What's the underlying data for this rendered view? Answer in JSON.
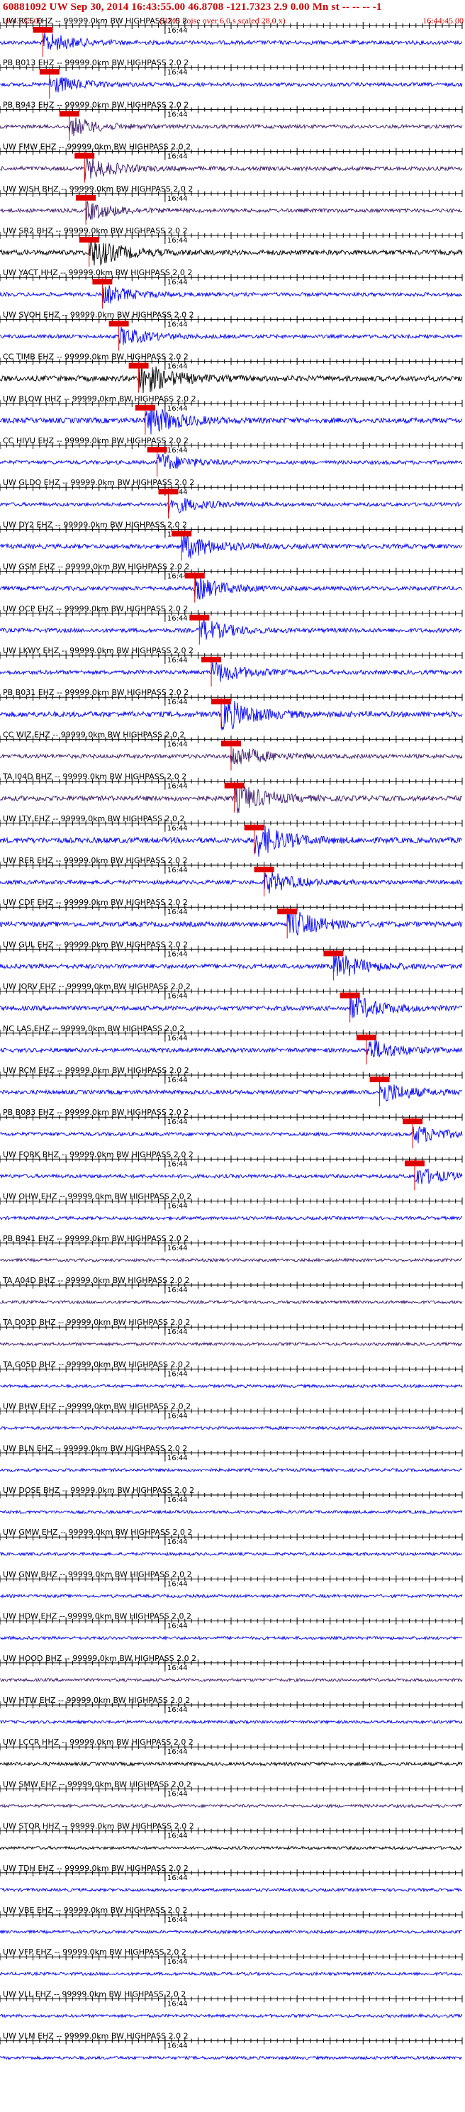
{
  "header": {
    "event_line": "60881092 UW Sep 30, 2014 16:43:55.00   46.8708 -121.7323  2.9 0.00 Mn st -- -- --  -1",
    "start_time": "16:43:35.00",
    "rms_note": "(RMS noise over 6.0 s scaled 28.0 x)",
    "end_time": "16:44:45.00"
  },
  "chart_data": {
    "type": "line",
    "x_range_seconds": [
      0,
      70
    ],
    "start_time": "16:43:35.00",
    "end_time": "16:44:45.00",
    "minute_tick_label": "16:44",
    "minute_tick_seconds": 25,
    "colors": {
      "blue": "#0000ff",
      "black": "#000000",
      "purple": "#3a1a6a",
      "pick": "#e00000"
    },
    "traces": [
      {
        "label": "UW RCS EHZ -- 99999.0km BW HIGHPASS 2.0 2",
        "color": "blue",
        "pick_s": 6.5,
        "amp": 0.55
      },
      {
        "label": "PB B013 EHZ -- 99999.0km BW HIGHPASS 2.0 2",
        "color": "blue",
        "pick_s": 7.5,
        "amp": 0.5
      },
      {
        "label": "PB B943 EHZ -- 99999.0km BW HIGHPASS 2.0 2",
        "color": "purple",
        "pick_s": 10.5,
        "amp": 0.5
      },
      {
        "label": "UW FMW EHZ -- 99999.0km BW HIGHPASS 2.0 2",
        "color": "purple",
        "pick_s": 12.8,
        "amp": 0.6
      },
      {
        "label": "UW WISH BHZ -- 99999.0km BW HIGHPASS 2.0 2",
        "color": "purple",
        "pick_s": 13.0,
        "amp": 0.5
      },
      {
        "label": "UW SR2 BHZ -- 99999.0km BW HIGHPASS 2.0 2",
        "color": "black",
        "pick_s": 13.5,
        "amp": 0.8
      },
      {
        "label": "UW YACT HHZ -- 99999.0km BW HIGHPASS 2.0 2",
        "color": "blue",
        "pick_s": 15.5,
        "amp": 0.5
      },
      {
        "label": "UW SVOH EHZ -- 99999.0km BW HIGHPASS 2.0 2",
        "color": "blue",
        "pick_s": 18.0,
        "amp": 0.5
      },
      {
        "label": "CC TIMB EHZ -- 99999.0km BW HIGHPASS 2.0 2",
        "color": "black",
        "pick_s": 21.0,
        "amp": 0.9
      },
      {
        "label": "UW BLOW HHZ -- 99999.0km BW HIGHPASS 2.0 2",
        "color": "blue",
        "pick_s": 22.0,
        "amp": 0.85
      },
      {
        "label": "CC HIVU EHZ -- 99999.0km BW HIGHPASS 2.0 2",
        "color": "blue",
        "pick_s": 23.8,
        "amp": 0.5
      },
      {
        "label": "UW GLDO EHZ -- 99999.0km BW HIGHPASS 2.0 2",
        "color": "blue",
        "pick_s": 25.5,
        "amp": 0.5
      },
      {
        "label": "UW DY2 EHZ -- 99999.0km BW HIGHPASS 2.0 2",
        "color": "blue",
        "pick_s": 27.5,
        "amp": 0.7
      },
      {
        "label": "UW GSM EHZ -- 99999.0km BW HIGHPASS 2.0 2",
        "color": "blue",
        "pick_s": 29.5,
        "amp": 0.6
      },
      {
        "label": "UW OCP EHZ -- 99999.0km BW HIGHPASS 2.0 2",
        "color": "blue",
        "pick_s": 30.2,
        "amp": 0.6
      },
      {
        "label": "UW LKWY EHZ -- 99999.0km BW HIGHPASS 2.0 2",
        "color": "blue",
        "pick_s": 32.0,
        "amp": 0.6
      },
      {
        "label": "PB B031 EHZ -- 99999.0km BW HIGHPASS 2.0 2",
        "color": "blue",
        "pick_s": 33.5,
        "amp": 0.9
      },
      {
        "label": "CC WIZ EHZ -- 99999.0km BW HIGHPASS 2.0 2",
        "color": "purple",
        "pick_s": 35.0,
        "amp": 0.6
      },
      {
        "label": "TA I04D BHZ -- 99999.0km BW HIGHPASS 2.0 2",
        "color": "purple",
        "pick_s": 35.5,
        "amp": 0.8
      },
      {
        "label": "UW LTY EHZ -- 99999.0km BW HIGHPASS 2.0 2",
        "color": "blue",
        "pick_s": 38.5,
        "amp": 0.9
      },
      {
        "label": "UW RER EHZ -- 99999.0km BW HIGHPASS 2.0 2",
        "color": "blue",
        "pick_s": 40.0,
        "amp": 0.6
      },
      {
        "label": "UW CDF EHZ -- 99999.0km BW HIGHPASS 2.0 2",
        "color": "blue",
        "pick_s": 43.5,
        "amp": 0.8
      },
      {
        "label": "UW GUL EHZ -- 99999.0km BW HIGHPASS 2.0 2",
        "color": "blue",
        "pick_s": 50.5,
        "amp": 0.7
      },
      {
        "label": "UW JORV EHZ -- 99999.0km BW HIGHPASS 2.0 2",
        "color": "blue",
        "pick_s": 53.0,
        "amp": 0.7
      },
      {
        "label": "NC LAS EHZ -- 99999.0km BW HIGHPASS 2.0 2",
        "color": "blue",
        "pick_s": 55.5,
        "amp": 0.6
      },
      {
        "label": "UW RCM EHZ -- 99999.0km BW HIGHPASS 2.0 2",
        "color": "blue",
        "pick_s": 57.5,
        "amp": 0.6
      },
      {
        "label": "PB B083 EHZ -- 99999.0km BW HIGHPASS 2.0 2",
        "color": "blue",
        "pick_s": 62.5,
        "amp": 0.5
      },
      {
        "label": "UW FORK BHZ -- 99999.0km BW HIGHPASS 2.0 2",
        "color": "blue",
        "pick_s": 62.8,
        "amp": 0.5
      },
      {
        "label": "UW OHW EHZ -- 99999.0km BW HIGHPASS 2.0 2",
        "color": "blue",
        "pick_s": null,
        "amp": 0.4
      },
      {
        "label": "PB B941 EHZ -- 99999.0km BW HIGHPASS 2.0 2",
        "color": "purple",
        "pick_s": null,
        "amp": 0.35
      },
      {
        "label": "TA A04D BHZ -- 99999.0km BW HIGHPASS 2.0 2",
        "color": "purple",
        "pick_s": null,
        "amp": 0.35
      },
      {
        "label": "TA D03D BHZ -- 99999.0km BW HIGHPASS 2.0 2",
        "color": "purple",
        "pick_s": null,
        "amp": 0.35
      },
      {
        "label": "TA G05D BHZ -- 99999.0km BW HIGHPASS 2.0 2",
        "color": "blue",
        "pick_s": null,
        "amp": 0.35
      },
      {
        "label": "UW BHW EHZ -- 99999.0km BW HIGHPASS 2.0 2",
        "color": "blue",
        "pick_s": null,
        "amp": 0.35
      },
      {
        "label": "UW BLN EHZ -- 99999.0km BW HIGHPASS 2.0 2",
        "color": "blue",
        "pick_s": null,
        "amp": 0.35
      },
      {
        "label": "UW DOSE BHZ -- 99999.0km BW HIGHPASS 2.0 2",
        "color": "blue",
        "pick_s": null,
        "amp": 0.35
      },
      {
        "label": "UW GMW EHZ -- 99999.0km BW HIGHPASS 2.0 2",
        "color": "blue",
        "pick_s": null,
        "amp": 0.35
      },
      {
        "label": "UW GNW BHZ -- 99999.0km BW HIGHPASS 2.0 2",
        "color": "blue",
        "pick_s": null,
        "amp": 0.35
      },
      {
        "label": "UW HDW EHZ -- 99999.0km BW HIGHPASS 2.0 2",
        "color": "blue",
        "pick_s": null,
        "amp": 0.35
      },
      {
        "label": "UW HOOD BHZ -- 99999.0km BW HIGHPASS 2.0 2",
        "color": "purple",
        "pick_s": null,
        "amp": 0.35
      },
      {
        "label": "UW HTW EHZ -- 99999.0km BW HIGHPASS 2.0 2",
        "color": "blue",
        "pick_s": null,
        "amp": 0.35
      },
      {
        "label": "UW LCCR HHZ -- 99999.0km BW HIGHPASS 2.0 2",
        "color": "black",
        "pick_s": null,
        "amp": 0.45
      },
      {
        "label": "UW SMW EHZ -- 99999.0km BW HIGHPASS 2.0 2",
        "color": "purple",
        "pick_s": null,
        "amp": 0.35
      },
      {
        "label": "UW STOR HHZ -- 99999.0km BW HIGHPASS 2.0 2",
        "color": "black",
        "pick_s": null,
        "amp": 0.35
      },
      {
        "label": "UW TDH EHZ -- 99999.0km BW HIGHPASS 2.0 2",
        "color": "blue",
        "pick_s": null,
        "amp": 0.35
      },
      {
        "label": "UW VBE EHZ -- 99999.0km BW HIGHPASS 2.0 2",
        "color": "blue",
        "pick_s": null,
        "amp": 0.35
      },
      {
        "label": "UW VFP EHZ -- 99999.0km BW HIGHPASS 2.0 2",
        "color": "blue",
        "pick_s": null,
        "amp": 0.35
      },
      {
        "label": "UW VLL EHZ -- 99999.0km BW HIGHPASS 2.0 2",
        "color": "blue",
        "pick_s": null,
        "amp": 0.35
      },
      {
        "label": "UW VLM EHZ -- 99999.0km BW HIGHPASS 2.0 2",
        "color": "blue",
        "pick_s": null,
        "amp": 0.35
      }
    ]
  }
}
